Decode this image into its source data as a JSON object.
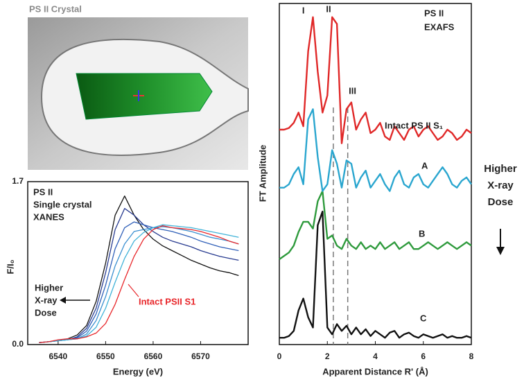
{
  "photo": {
    "label": "PS II Crystal"
  },
  "chart_data": [
    {
      "type": "line",
      "title_lines": [
        "PS II",
        "Single crystal",
        "XANES"
      ],
      "annotation_lines": [
        "Higher",
        "X-ray",
        "Dose"
      ],
      "xlabel": "Energy (eV)",
      "ylabel": "F/I₀",
      "xlim": [
        6533.6,
        6580
      ],
      "xticks": [
        6540,
        6550,
        6560,
        6570
      ],
      "ylim": [
        0,
        1.7
      ],
      "yticks": [
        {
          "value": 0,
          "label": "0.0"
        },
        1.7
      ],
      "x": [
        6536,
        6538,
        6540,
        6542,
        6544,
        6546,
        6548,
        6550,
        6552,
        6554,
        6556,
        6558,
        6560,
        6562,
        6564,
        6566,
        6568,
        6570,
        6572,
        6574,
        6576,
        6578
      ],
      "series": [
        {
          "name": "Intact PSII S1",
          "color": "#e8262a",
          "values": [
            0.02,
            0.03,
            0.05,
            0.06,
            0.06,
            0.08,
            0.12,
            0.22,
            0.42,
            0.68,
            0.92,
            1.1,
            1.2,
            1.24,
            1.22,
            1.21,
            1.2,
            1.18,
            1.15,
            1.12,
            1.08,
            1.05
          ]
        },
        {
          "color": "#3fb2d8",
          "values": [
            0.02,
            0.03,
            0.04,
            0.05,
            0.06,
            0.09,
            0.18,
            0.38,
            0.65,
            0.9,
            1.08,
            1.17,
            1.22,
            1.25,
            1.24,
            1.23,
            1.22,
            1.2,
            1.18,
            1.16,
            1.14,
            1.12
          ]
        },
        {
          "color": "#3a8fd0",
          "values": [
            0.02,
            0.03,
            0.04,
            0.05,
            0.06,
            0.11,
            0.25,
            0.5,
            0.82,
            1.05,
            1.18,
            1.2,
            1.22,
            1.23,
            1.22,
            1.2,
            1.18,
            1.15,
            1.12,
            1.1,
            1.08,
            1.05
          ]
        },
        {
          "color": "#2f5fb8",
          "values": [
            0.02,
            0.03,
            0.04,
            0.05,
            0.07,
            0.14,
            0.32,
            0.62,
            1.0,
            1.22,
            1.28,
            1.25,
            1.22,
            1.2,
            1.18,
            1.15,
            1.12,
            1.08,
            1.05,
            1.02,
            1.0,
            0.98
          ]
        },
        {
          "color": "#273a8f",
          "values": [
            0.02,
            0.03,
            0.04,
            0.05,
            0.08,
            0.17,
            0.38,
            0.75,
            1.2,
            1.42,
            1.35,
            1.25,
            1.18,
            1.12,
            1.08,
            1.05,
            1.02,
            0.98,
            0.95,
            0.92,
            0.9,
            0.88
          ]
        },
        {
          "color": "#111111",
          "values": [
            0.02,
            0.03,
            0.04,
            0.06,
            0.1,
            0.2,
            0.45,
            0.85,
            1.35,
            1.55,
            1.35,
            1.2,
            1.1,
            1.03,
            0.98,
            0.93,
            0.88,
            0.84,
            0.8,
            0.77,
            0.75,
            0.72
          ]
        }
      ]
    },
    {
      "type": "line",
      "title_lines": [
        "PS II",
        "EXAFS"
      ],
      "peak_labels": [
        "I",
        "II",
        "III"
      ],
      "annotation_lines": [
        "Higher",
        "X-ray",
        "Dose"
      ],
      "xlabel": "Apparent Distance R' (Å)",
      "ylabel": "FT Amplitude",
      "xlim": [
        0,
        8
      ],
      "xticks": [
        0,
        2,
        4,
        6,
        8
      ],
      "ylim": [
        0,
        10
      ],
      "vlines": [
        2.25,
        2.85
      ],
      "x": [
        0,
        0.2,
        0.4,
        0.6,
        0.8,
        1.0,
        1.2,
        1.4,
        1.6,
        1.8,
        2.0,
        2.2,
        2.4,
        2.6,
        2.8,
        3.0,
        3.2,
        3.4,
        3.6,
        3.8,
        4.0,
        4.2,
        4.4,
        4.6,
        4.8,
        5.0,
        5.2,
        5.4,
        5.6,
        5.8,
        6.0,
        6.2,
        6.4,
        6.6,
        6.8,
        7.0,
        7.2,
        7.4,
        7.6,
        7.8,
        8.0
      ],
      "series": [
        {
          "name": "Intact PS II S₁",
          "color": "#e02828",
          "values": [
            6.3,
            6.3,
            6.35,
            6.5,
            6.8,
            6.4,
            8.6,
            9.6,
            8.0,
            6.8,
            7.3,
            9.6,
            9.4,
            5.9,
            6.9,
            7.1,
            6.3,
            6.6,
            6.8,
            6.2,
            6.3,
            6.5,
            6.1,
            6.0,
            6.4,
            6.2,
            6.0,
            6.3,
            6.4,
            6.1,
            6.3,
            6.4,
            6.2,
            6.0,
            6.1,
            6.3,
            6.2,
            6.0,
            6.1,
            6.3,
            6.2
          ]
        },
        {
          "name": "A",
          "color": "#2aa6cf",
          "values": [
            4.6,
            4.6,
            4.7,
            5.0,
            5.2,
            4.7,
            6.6,
            6.9,
            5.5,
            4.5,
            4.7,
            5.7,
            5.3,
            4.6,
            5.4,
            5.3,
            4.6,
            4.9,
            5.1,
            4.6,
            4.8,
            5.0,
            4.7,
            4.5,
            4.9,
            5.1,
            4.7,
            4.6,
            4.9,
            5.0,
            4.7,
            4.6,
            4.8,
            5.0,
            5.2,
            5.0,
            4.7,
            4.6,
            4.8,
            4.9,
            4.7
          ]
        },
        {
          "name": "B",
          "color": "#2e9a3c",
          "values": [
            2.5,
            2.6,
            2.7,
            2.9,
            3.3,
            3.6,
            3.6,
            3.4,
            4.2,
            4.5,
            3.1,
            3.2,
            2.9,
            2.8,
            3.1,
            2.9,
            2.8,
            3.0,
            2.8,
            2.9,
            2.8,
            3.0,
            2.8,
            2.9,
            3.0,
            2.8,
            2.9,
            3.0,
            2.8,
            2.8,
            2.9,
            3.0,
            2.9,
            2.8,
            2.9,
            3.0,
            2.9,
            2.8,
            2.9,
            3.0,
            2.9
          ]
        },
        {
          "name": "C",
          "color": "#111111",
          "values": [
            0.2,
            0.2,
            0.25,
            0.4,
            1.0,
            1.35,
            0.8,
            0.5,
            3.5,
            3.9,
            0.5,
            0.3,
            0.6,
            0.4,
            0.55,
            0.3,
            0.5,
            0.3,
            0.45,
            0.25,
            0.4,
            0.3,
            0.2,
            0.35,
            0.4,
            0.2,
            0.3,
            0.35,
            0.25,
            0.2,
            0.3,
            0.25,
            0.2,
            0.25,
            0.3,
            0.2,
            0.25,
            0.2,
            0.2,
            0.25,
            0.2
          ]
        }
      ]
    }
  ]
}
